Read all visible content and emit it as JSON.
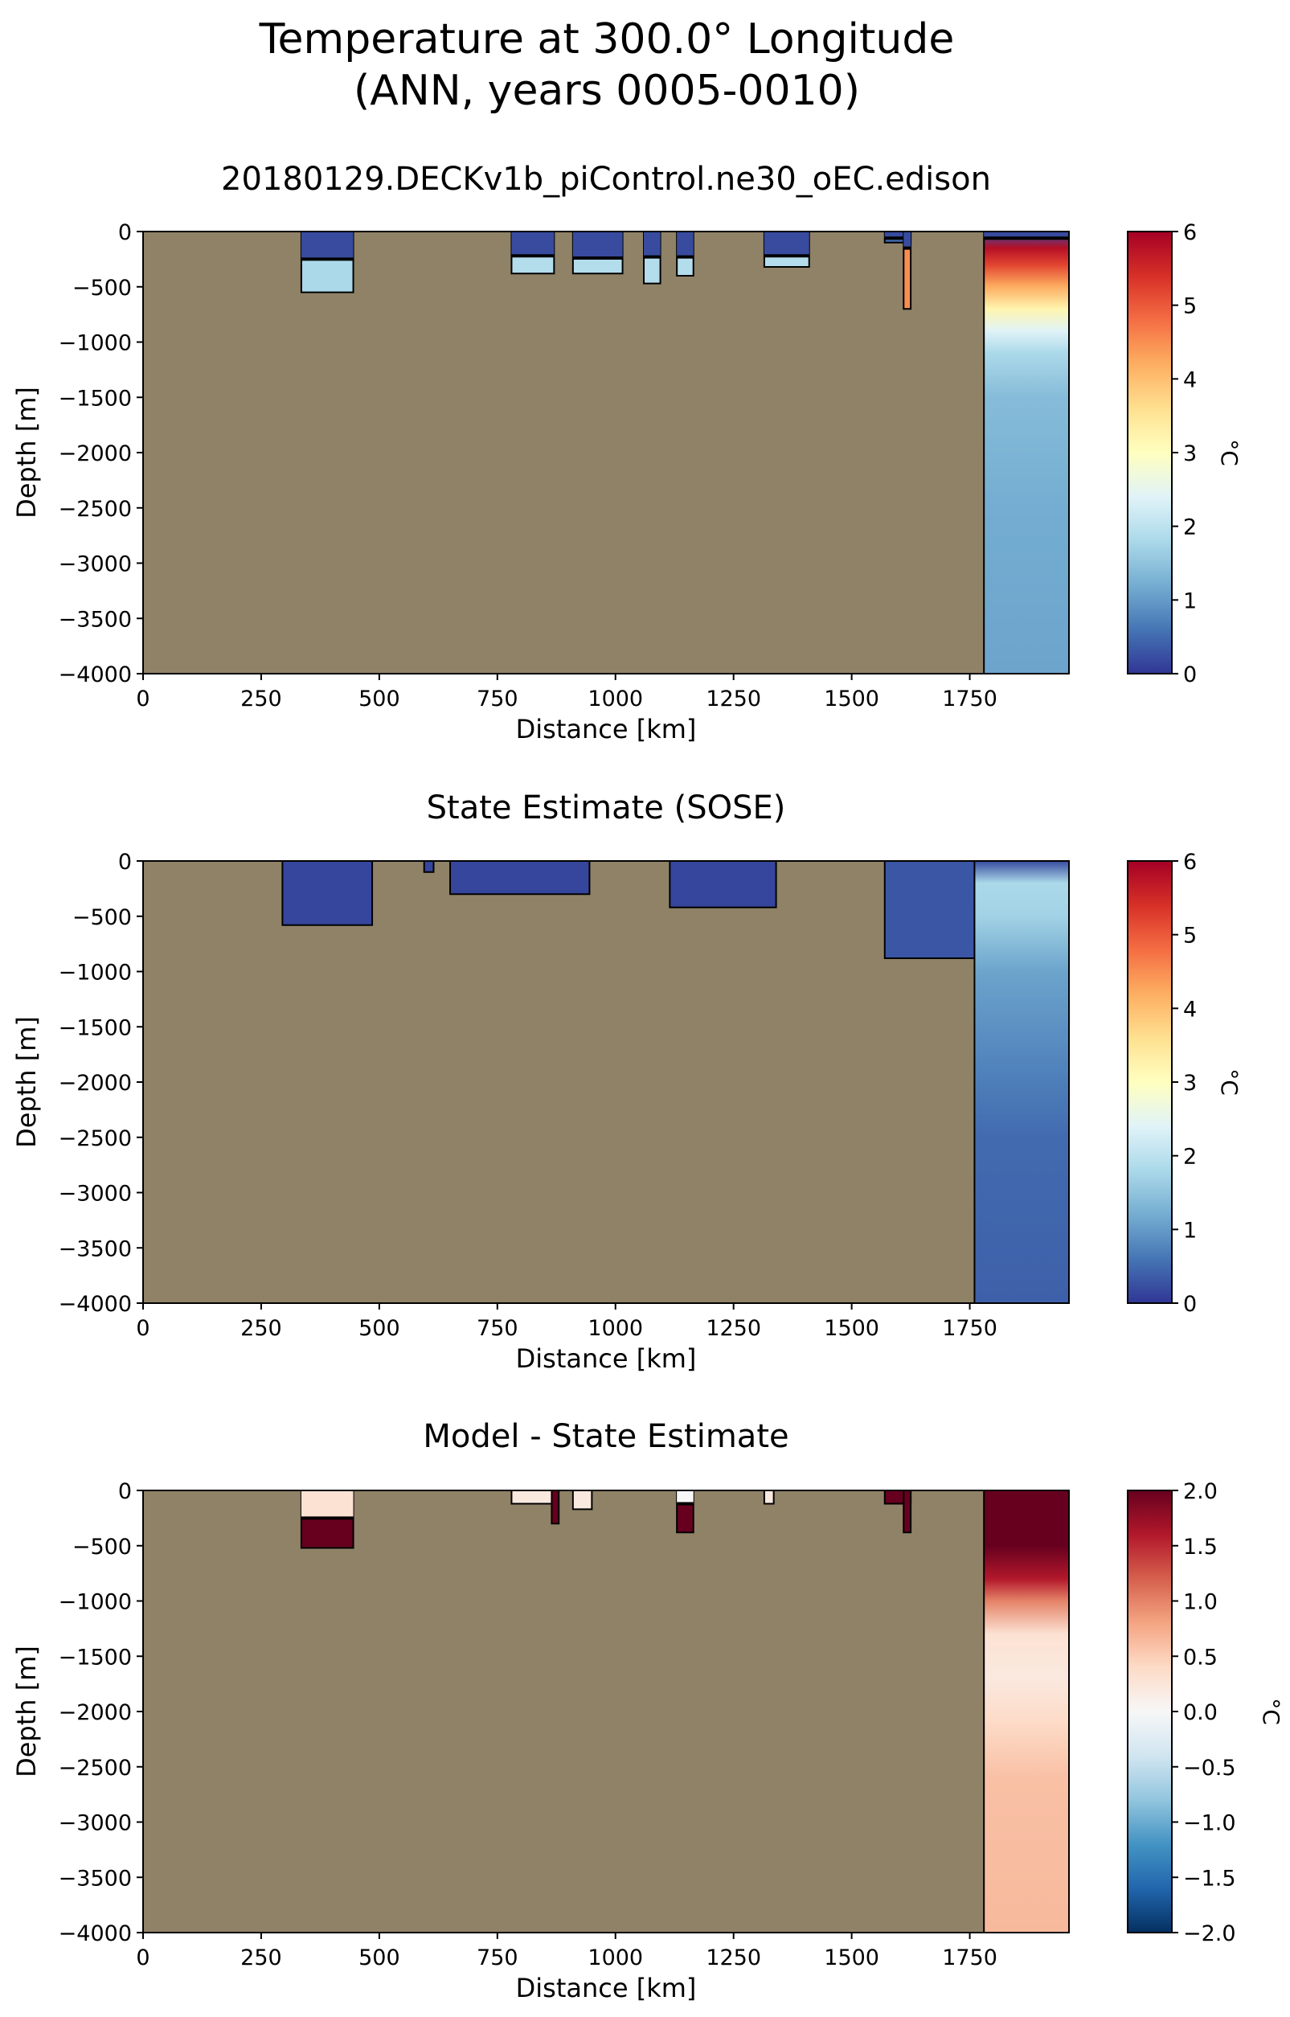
{
  "figure": {
    "title_line1": "Temperature at 300.0° Longitude",
    "title_line2": "(ANN, years 0005-0010)",
    "land_color": "#8f8267"
  },
  "chart_data": [
    {
      "type": "heatmap",
      "title": "20180129.DECKv1b_piControl.ne30_oEC.edison",
      "xlabel": "Distance [km]",
      "ylabel": "Depth [m]",
      "xlim": [
        0,
        1960
      ],
      "ylim": [
        -4000,
        0
      ],
      "xticks": [
        0,
        250,
        500,
        750,
        1000,
        1250,
        1500,
        1750
      ],
      "yticks": [
        0,
        -500,
        -1000,
        -1500,
        -2000,
        -2500,
        -3000,
        -3500,
        -4000
      ],
      "colorbar": {
        "label": "°C",
        "colormap": "RdYlBu_r",
        "vmin": 0,
        "vmax": 6,
        "ticks": [
          0,
          1,
          2,
          3,
          4,
          5,
          6
        ]
      },
      "ocean_regions": [
        {
          "x": [
            335,
            445
          ],
          "bottom": -550,
          "value": 1.8,
          "surface_value": 0.2,
          "surface_depth": -250
        },
        {
          "x": [
            780,
            870
          ],
          "bottom": -380,
          "value": 1.9,
          "surface_value": 0.2,
          "surface_depth": -220
        },
        {
          "x": [
            910,
            1015
          ],
          "bottom": -380,
          "value": 1.9,
          "surface_value": 0.2,
          "surface_depth": -240
        },
        {
          "x": [
            1060,
            1095
          ],
          "bottom": -470,
          "value": 1.9,
          "surface_value": 0.2,
          "surface_depth": -230
        },
        {
          "x": [
            1130,
            1165
          ],
          "bottom": -400,
          "value": 1.9,
          "surface_value": 0.2,
          "surface_depth": -230
        },
        {
          "x": [
            1315,
            1410
          ],
          "bottom": -320,
          "value": 1.9,
          "surface_value": 0.2,
          "surface_depth": -220
        },
        {
          "x": [
            1570,
            1625
          ],
          "bottom": -100,
          "value": 0.5,
          "surface_value": 0.2,
          "surface_depth": -60
        },
        {
          "x": [
            1610,
            1625
          ],
          "bottom": -700,
          "value": 4.5,
          "surface_value": 0.2,
          "surface_depth": -150
        },
        {
          "x": [
            1780,
            1960
          ],
          "bottom": -4000,
          "value": 1.2,
          "surface_value": 0.2,
          "surface_depth": -60,
          "profile": [
            [
              0,
              0.2
            ],
            [
              -150,
              5.8
            ],
            [
              -300,
              5.2
            ],
            [
              -500,
              4.2
            ],
            [
              -700,
              3.2
            ],
            [
              -900,
              2.4
            ],
            [
              -1100,
              1.8
            ],
            [
              -1500,
              1.4
            ],
            [
              -2500,
              1.2
            ],
            [
              -4000,
              1.1
            ]
          ]
        }
      ]
    },
    {
      "type": "heatmap",
      "title": "State Estimate (SOSE)",
      "xlabel": "Distance [km]",
      "ylabel": "Depth [m]",
      "xlim": [
        0,
        1960
      ],
      "ylim": [
        -4000,
        0
      ],
      "xticks": [
        0,
        250,
        500,
        750,
        1000,
        1250,
        1500,
        1750
      ],
      "yticks": [
        0,
        -500,
        -1000,
        -1500,
        -2000,
        -2500,
        -3000,
        -3500,
        -4000
      ],
      "colorbar": {
        "label": "°C",
        "colormap": "RdYlBu_r",
        "vmin": 0,
        "vmax": 6,
        "ticks": [
          0,
          1,
          2,
          3,
          4,
          5,
          6
        ]
      },
      "ocean_regions": [
        {
          "x": [
            295,
            485
          ],
          "bottom": -580,
          "value": 0.15
        },
        {
          "x": [
            595,
            615
          ],
          "bottom": -100,
          "value": 0.15
        },
        {
          "x": [
            650,
            945
          ],
          "bottom": -300,
          "value": 0.15
        },
        {
          "x": [
            1115,
            1340
          ],
          "bottom": -420,
          "value": 0.15
        },
        {
          "x": [
            1570,
            1760
          ],
          "bottom": -880,
          "value": 0.3
        },
        {
          "x": [
            1760,
            1960
          ],
          "bottom": -4000,
          "value": 0.6,
          "profile": [
            [
              0,
              0.2
            ],
            [
              -200,
              1.8
            ],
            [
              -500,
              1.7
            ],
            [
              -1000,
              1.1
            ],
            [
              -1500,
              0.9
            ],
            [
              -2000,
              0.7
            ],
            [
              -2500,
              0.5
            ],
            [
              -4000,
              0.4
            ]
          ]
        }
      ]
    },
    {
      "type": "heatmap",
      "title": "Model - State Estimate",
      "xlabel": "Distance [km]",
      "ylabel": "Depth [m]",
      "xlim": [
        0,
        1960
      ],
      "ylim": [
        -4000,
        0
      ],
      "xticks": [
        0,
        250,
        500,
        750,
        1000,
        1250,
        1500,
        1750
      ],
      "yticks": [
        0,
        -500,
        -1000,
        -1500,
        -2000,
        -2500,
        -3000,
        -3500,
        -4000
      ],
      "colorbar": {
        "label": "°C",
        "colormap": "RdBu_r",
        "vmin": -2.0,
        "vmax": 2.0,
        "ticks": [
          -2.0,
          -1.5,
          -1.0,
          -0.5,
          0.0,
          0.5,
          1.0,
          1.5,
          2.0
        ]
      },
      "ocean_regions": [
        {
          "x": [
            335,
            445
          ],
          "bottom": -520,
          "value": 2.0,
          "surface_value": 0.3,
          "surface_depth": -250
        },
        {
          "x": [
            780,
            870
          ],
          "bottom": -120,
          "value": 0.2
        },
        {
          "x": [
            865,
            880
          ],
          "bottom": -300,
          "value": 2.0
        },
        {
          "x": [
            910,
            950
          ],
          "bottom": -170,
          "value": 0.2
        },
        {
          "x": [
            1130,
            1165
          ],
          "bottom": -380,
          "value": 2.0,
          "surface_value": 0.0,
          "surface_depth": -120
        },
        {
          "x": [
            1315,
            1335
          ],
          "bottom": -120,
          "value": 0.2
        },
        {
          "x": [
            1570,
            1625
          ],
          "bottom": -120,
          "value": 2.0
        },
        {
          "x": [
            1610,
            1625
          ],
          "bottom": -380,
          "value": 2.0
        },
        {
          "x": [
            1780,
            1960
          ],
          "bottom": -4000,
          "value": 0.6,
          "profile": [
            [
              0,
              2.0
            ],
            [
              -500,
              2.0
            ],
            [
              -800,
              1.6
            ],
            [
              -1000,
              1.0
            ],
            [
              -1300,
              0.3
            ],
            [
              -1700,
              0.2
            ],
            [
              -2100,
              0.4
            ],
            [
              -2600,
              0.6
            ],
            [
              -4000,
              0.65
            ]
          ]
        }
      ]
    }
  ]
}
